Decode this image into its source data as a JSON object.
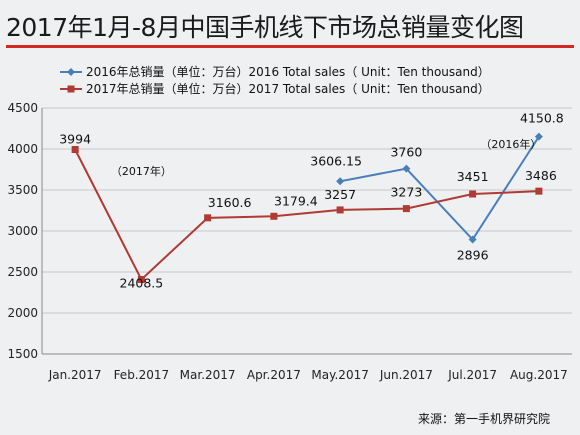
{
  "header": {
    "title": "2017年1月-8月中国手机线下市场总销量变化图"
  },
  "footer": {
    "source": "来源：第一手机界研究院"
  },
  "chart_data": {
    "type": "line",
    "title": "2017年1月-8月中国手机线下市场总销量变化图",
    "xlabel": "",
    "ylabel": "",
    "categories": [
      "Jan.2017",
      "Feb.2017",
      "Mar.2017",
      "Apr.2017",
      "May.2017",
      "Jun.2017",
      "Jul.2017",
      "Aug.2017"
    ],
    "ylim": [
      1500,
      4500
    ],
    "yticks": [
      1500,
      2000,
      2500,
      3000,
      3500,
      4000,
      4500
    ],
    "grid": true,
    "legend_position": "top",
    "series": [
      {
        "name": "2016年总销量（单位：万台）2016 Total sales（ Unit：Ten thousand）",
        "color": "#4a7ebb",
        "marker": "diamond",
        "values": [
          null,
          null,
          null,
          null,
          3606.15,
          3760,
          2896,
          4150.8
        ],
        "labels": [
          "",
          "",
          "",
          "",
          "3606.15",
          "3760",
          "2896",
          "4150.8"
        ]
      },
      {
        "name": "2017年总销量（单位：万台）2017 Total sales（ Unit：Ten thousand）",
        "color": "#b03a34",
        "marker": "square",
        "values": [
          3994,
          2408.5,
          3160.6,
          3179.4,
          3257,
          3273,
          3451,
          3486
        ],
        "labels": [
          "3994",
          "2408.5",
          "3160.6",
          "3179.4",
          "3257",
          "3273",
          "3451",
          "3486"
        ]
      }
    ],
    "annotations": [
      {
        "text": "（2017年）",
        "series": 1,
        "index": 1
      },
      {
        "text": "（2016年）",
        "series": 0,
        "index": 7
      }
    ]
  }
}
